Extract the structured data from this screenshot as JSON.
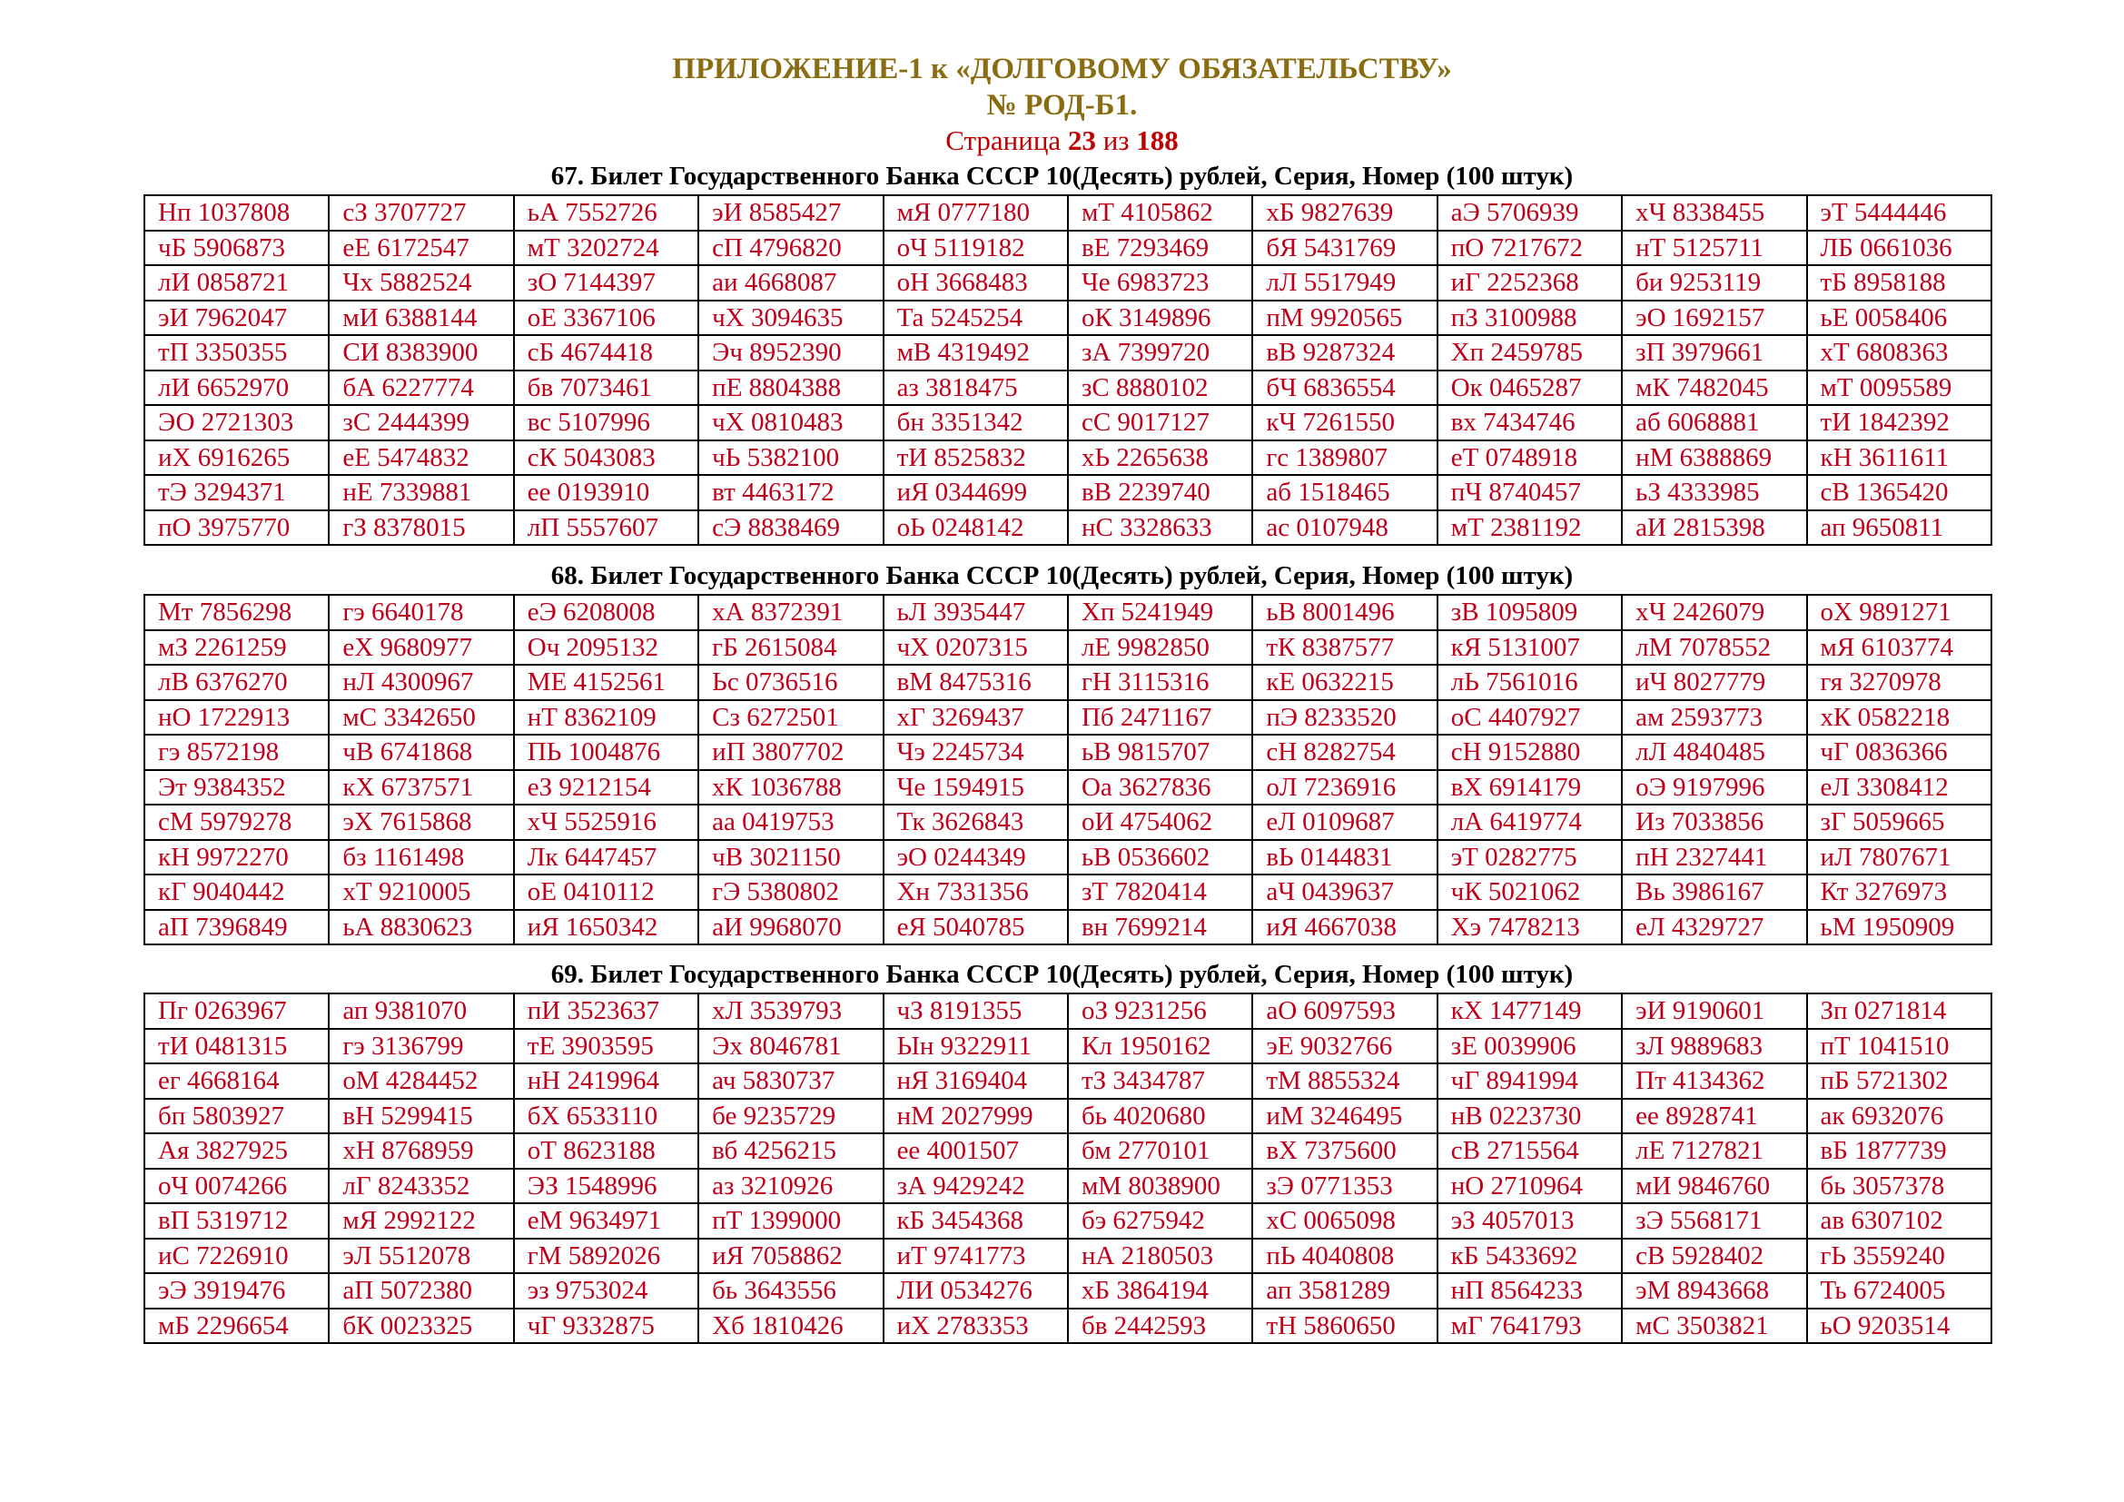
{
  "header": {
    "line1": "ПРИЛОЖЕНИЕ-1 к «ДОЛГОВОМУ ОБЯЗАТЕЛЬСТВУ»",
    "line2": "№ РОД-Б1.",
    "page_prefix": "Страница ",
    "page_current": "23",
    "page_sep": " из ",
    "page_total": "188"
  },
  "sections": [
    {
      "caption": "67. Билет Государственного Банка СССР 10(Десять) рублей, Серия, Номер (100 штук)",
      "rows": [
        [
          "Нп 1037808",
          "сЗ 3707727",
          "ьА 7552726",
          "эИ 8585427",
          "мЯ 0777180",
          "мТ 4105862",
          "хБ 9827639",
          "аЭ 5706939",
          "хЧ 8338455",
          "эТ 5444446"
        ],
        [
          "чБ 5906873",
          "еЕ 6172547",
          "мТ 3202724",
          "сП 4796820",
          "оЧ 5119182",
          "вЕ 7293469",
          "бЯ 5431769",
          "пО 7217672",
          "нТ 5125711",
          "ЛБ 0661036"
        ],
        [
          "лИ 0858721",
          "Чх 5882524",
          "зО 7144397",
          "аи 4668087",
          "оН 3668483",
          "Че 6983723",
          "лЛ 5517949",
          "иГ 2252368",
          "би 9253119",
          "тБ 8958188"
        ],
        [
          "эИ 7962047",
          "мИ 6388144",
          "оЕ 3367106",
          "чХ 3094635",
          "Та 5245254",
          "оК 3149896",
          "пМ 9920565",
          "пЗ 3100988",
          "эО 1692157",
          "ьЕ 0058406"
        ],
        [
          "тП 3350355",
          "СИ 8383900",
          "сБ 4674418",
          "Эч 8952390",
          "мВ 4319492",
          "зА 7399720",
          "вВ 9287324",
          "Хп 2459785",
          "зП 3979661",
          "хТ 6808363"
        ],
        [
          "лИ 6652970",
          "бА 6227774",
          "бв 7073461",
          "пЕ 8804388",
          "аз 3818475",
          "зС 8880102",
          "бЧ 6836554",
          "Ок 0465287",
          "мК 7482045",
          "мТ 0095589"
        ],
        [
          "ЭО 2721303",
          "зС 2444399",
          "вс 5107996",
          "чХ 0810483",
          "бн 3351342",
          "сС 9017127",
          "кЧ 7261550",
          "вх 7434746",
          "аб 6068881",
          "тИ 1842392"
        ],
        [
          "иХ 6916265",
          "еЕ 5474832",
          "сК 5043083",
          "чЬ 5382100",
          "тИ 8525832",
          "хЬ 2265638",
          "гс 1389807",
          "еТ 0748918",
          "нМ 6388869",
          "кН 3611611"
        ],
        [
          "тЭ 3294371",
          "нЕ 7339881",
          "ее 0193910",
          "вт 4463172",
          "иЯ 0344699",
          "вВ 2239740",
          "аб 1518465",
          "пЧ 8740457",
          "ьЗ 4333985",
          "сВ 1365420"
        ],
        [
          "пО 3975770",
          "гЗ 8378015",
          "лП 5557607",
          "сЭ 8838469",
          "оЬ 0248142",
          "нС 3328633",
          "ас 0107948",
          "мТ 2381192",
          "аИ 2815398",
          "ап 9650811"
        ]
      ]
    },
    {
      "caption": "68. Билет Государственного Банка СССР 10(Десять) рублей, Серия, Номер (100 штук)",
      "rows": [
        [
          "Мт 7856298",
          "гэ 6640178",
          "еЭ 6208008",
          "хА 8372391",
          "ьЛ 3935447",
          "Хп 5241949",
          "ьВ 8001496",
          "зВ 1095809",
          "хЧ 2426079",
          "оХ 9891271"
        ],
        [
          "мЗ 2261259",
          "еХ 9680977",
          "Оч 2095132",
          "гБ 2615084",
          "чХ 0207315",
          "лЕ 9982850",
          "тК 8387577",
          "кЯ 5131007",
          "лМ 7078552",
          "мЯ 6103774"
        ],
        [
          "лВ 6376270",
          "нЛ 4300967",
          "МЕ 4152561",
          "Ьс 0736516",
          "вМ 8475316",
          "гН 3115316",
          "кЕ 0632215",
          "лЬ 7561016",
          "иЧ 8027779",
          "гя 3270978"
        ],
        [
          "нО 1722913",
          "мС 3342650",
          "нТ 8362109",
          "Сз 6272501",
          "хГ 3269437",
          "Пб 2471167",
          "пЭ 8233520",
          "оС 4407927",
          "ам 2593773",
          "хК 0582218"
        ],
        [
          "гэ 8572198",
          "чВ 6741868",
          "ПЬ 1004876",
          "иП 3807702",
          "Чэ 2245734",
          "ьВ 9815707",
          "сН 8282754",
          "сН 9152880",
          "лЛ 4840485",
          "чГ 0836366"
        ],
        [
          "Эт 9384352",
          "кХ 6737571",
          "еЗ 9212154",
          "хК 1036788",
          "Че 1594915",
          "Оа 3627836",
          "оЛ 7236916",
          "вХ 6914179",
          "оЭ 9197996",
          "еЛ 3308412"
        ],
        [
          "сМ 5979278",
          "эХ 7615868",
          "хЧ 5525916",
          "аа 0419753",
          "Тк 3626843",
          "оИ 4754062",
          "еЛ 0109687",
          "лА 6419774",
          "Из 7033856",
          "зГ 5059665"
        ],
        [
          "кН 9972270",
          "бз 1161498",
          "Лк 6447457",
          "чВ 3021150",
          "эО 0244349",
          "ьВ 0536602",
          "вЬ 0144831",
          "эТ 0282775",
          "пН 2327441",
          "иЛ 7807671"
        ],
        [
          "кГ 9040442",
          "хТ 9210005",
          "оЕ 0410112",
          "гЭ 5380802",
          "Хн 7331356",
          "зТ 7820414",
          "аЧ 0439637",
          "чК 5021062",
          "Вь 3986167",
          "Кт 3276973"
        ],
        [
          "аП 7396849",
          "ьА 8830623",
          "иЯ 1650342",
          "аИ 9968070",
          "еЯ 5040785",
          "вн 7699214",
          "иЯ 4667038",
          "Хэ 7478213",
          "еЛ 4329727",
          "ьМ 1950909"
        ]
      ]
    },
    {
      "caption": "69. Билет Государственного Банка СССР 10(Десять) рублей, Серия, Номер (100 штук)",
      "rows": [
        [
          "Пг 0263967",
          "ап 9381070",
          "пИ 3523637",
          "хЛ 3539793",
          "чЗ 8191355",
          "оЗ 9231256",
          "аО 6097593",
          "кХ 1477149",
          "эИ 9190601",
          "Зп 0271814"
        ],
        [
          "тИ 0481315",
          "гэ 3136799",
          "тЕ 3903595",
          "Эх 8046781",
          "Ын 9322911",
          "Кл 1950162",
          "эЕ 9032766",
          "зЕ 0039906",
          "зЛ 9889683",
          "пТ 1041510"
        ],
        [
          "ег 4668164",
          "оМ 4284452",
          "нН 2419964",
          "ач 5830737",
          "нЯ 3169404",
          "тЗ 3434787",
          "тМ 8855324",
          "чГ 8941994",
          "Пт 4134362",
          "пБ 5721302"
        ],
        [
          "бп 5803927",
          "вН 5299415",
          "бХ 6533110",
          "бе 9235729",
          "нМ 2027999",
          "бь 4020680",
          "иМ 3246495",
          "нВ 0223730",
          "ее 8928741",
          "ак 6932076"
        ],
        [
          "Ая 3827925",
          "хН 8768959",
          "оТ 8623188",
          "вб 4256215",
          "ее 4001507",
          "бм 2770101",
          "вХ 7375600",
          "сВ 2715564",
          "лЕ 7127821",
          "вБ 1877739"
        ],
        [
          "оЧ 0074266",
          "лГ 8243352",
          "ЭЗ 1548996",
          "аз 3210926",
          "зА 9429242",
          "мМ 8038900",
          "зЭ 0771353",
          "нО 2710964",
          "мИ 9846760",
          "бь 3057378"
        ],
        [
          "вП 5319712",
          "мЯ 2992122",
          "еМ 9634971",
          "пТ 1399000",
          "кБ 3454368",
          "бэ 6275942",
          "хС 0065098",
          "эЗ 4057013",
          "зЭ 5568171",
          "ав 6307102"
        ],
        [
          "иС 7226910",
          "эЛ 5512078",
          "гМ 5892026",
          "иЯ 7058862",
          "иТ 9741773",
          "нА 2180503",
          "пЬ 4040808",
          "кБ 5433692",
          "сВ 5928402",
          "гЬ 3559240"
        ],
        [
          "эЭ 3919476",
          "аП 5072380",
          "эз 9753024",
          "бь 3643556",
          "ЛИ 0534276",
          "хБ 3864194",
          "ап 3581289",
          "нП 8564233",
          "эМ 8943668",
          "Ть 6724005"
        ],
        [
          "мБ 2296654",
          "бК 0023325",
          "чГ 9332875",
          "Хб 1810426",
          "иХ 2783353",
          "бв 2442593",
          "тН 5860650",
          "мГ 7641793",
          "мС 3503821",
          "ьО 9203514"
        ]
      ]
    }
  ],
  "colors": {
    "title": "#8a6d12",
    "page": "#c00000",
    "cells": "#c0001a"
  }
}
